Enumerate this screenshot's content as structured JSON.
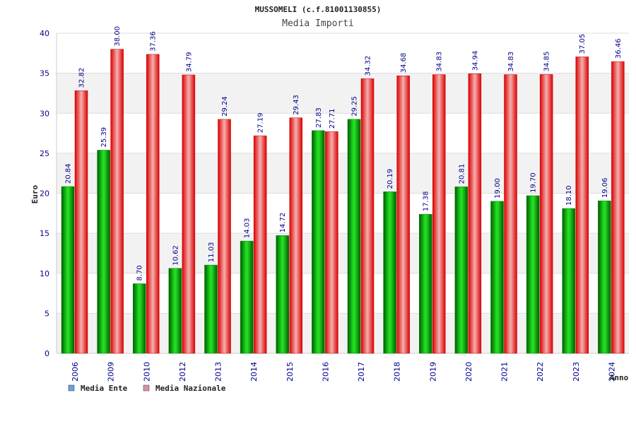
{
  "chart_data": {
    "type": "bar",
    "title": "MUSSOMELI (c.f.81001130855)",
    "subtitle": "Media Importi",
    "ylabel": "Euro",
    "xlabel": "Anno",
    "ylim": [
      0,
      40
    ],
    "yticks": [
      0,
      5,
      10,
      15,
      20,
      25,
      30,
      35,
      40
    ],
    "categories": [
      "2006",
      "2009",
      "2010",
      "2012",
      "2013",
      "2014",
      "2015",
      "2016",
      "2017",
      "2018",
      "2019",
      "2020",
      "2021",
      "2022",
      "2023",
      "2024"
    ],
    "series": [
      {
        "name": "Media Ente",
        "values": [
          20.84,
          25.39,
          8.7,
          10.62,
          11.03,
          14.03,
          14.72,
          27.83,
          29.25,
          20.19,
          17.38,
          20.81,
          19.0,
          19.7,
          18.1,
          19.06
        ],
        "labels": [
          "20.84",
          "25.39",
          "8.70",
          "10.62",
          "11.03",
          "14.03",
          "14.72",
          "27.83",
          "29.25",
          "20.19",
          "17.38",
          "20.81",
          "19.00",
          "19.70",
          "18.10",
          "19.06"
        ],
        "color": "#00aa00",
        "legend_color": "#66a3e0"
      },
      {
        "name": "Media Nazionale",
        "values": [
          32.82,
          38.0,
          37.36,
          34.79,
          29.24,
          27.19,
          29.43,
          27.71,
          34.32,
          34.68,
          34.83,
          34.94,
          34.83,
          34.85,
          37.05,
          36.46
        ],
        "labels": [
          "32.82",
          "38.00",
          "37.36",
          "34.79",
          "29.24",
          "27.19",
          "29.43",
          "27.71",
          "34.32",
          "34.68",
          "34.83",
          "34.94",
          "34.83",
          "34.85",
          "37.05",
          "36.46"
        ],
        "color": "#ee1111",
        "legend_color": "#d98fb0"
      }
    ],
    "grid": true,
    "legend_position": "bottom-left"
  }
}
